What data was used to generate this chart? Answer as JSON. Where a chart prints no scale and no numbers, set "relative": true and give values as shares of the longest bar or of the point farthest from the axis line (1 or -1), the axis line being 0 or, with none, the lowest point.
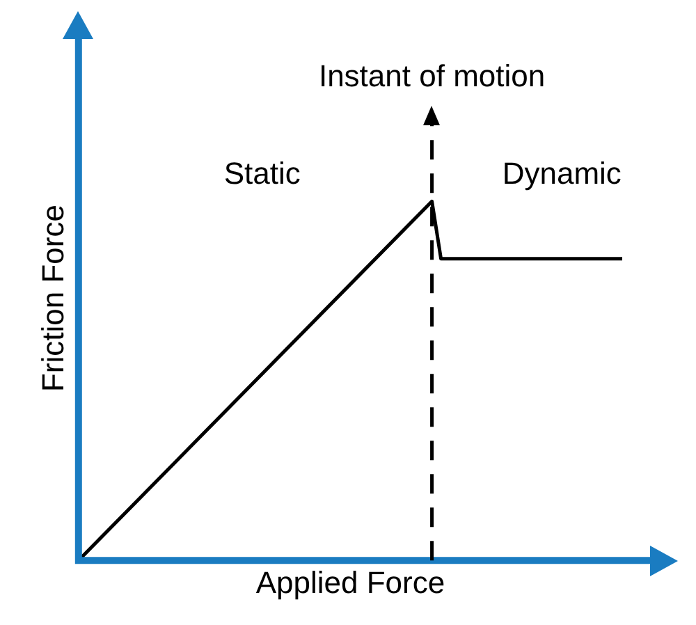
{
  "chart_data": {
    "type": "line",
    "relative": true,
    "xlabel": "Applied Force",
    "ylabel": "Friction Force",
    "categories": [
      null,
      null,
      null,
      null,
      null,
      null,
      null,
      null,
      null,
      null,
      null,
      null,
      null,
      null,
      null,
      null,
      null,
      null,
      null,
      null,
      null,
      null,
      null,
      null,
      null,
      null,
      null,
      null,
      null,
      null,
      null,
      null,
      null,
      null,
      null,
      null,
      null,
      null,
      null,
      null,
      null,
      null,
      null,
      null,
      null,
      null,
      null,
      null,
      null,
      null,
      null,
      null,
      null,
      null,
      null,
      null,
      null,
      null,
      null,
      null,
      null
    ],
    "series": [
      {
        "color": "#000000",
        "values": [
          0,
          null,
          null,
          null,
          null,
          null,
          null,
          null,
          null,
          null,
          null,
          null,
          null,
          null,
          null,
          null,
          null,
          null,
          null,
          null,
          null,
          null,
          null,
          null,
          null,
          null,
          null,
          null,
          null,
          null,
          null,
          null,
          null,
          null,
          null,
          null,
          null,
          null,
          null,
          1,
          0.84,
          null,
          null,
          null,
          null,
          null,
          null,
          null,
          null,
          null,
          null,
          null,
          null,
          null,
          null,
          null,
          null,
          null,
          null,
          null,
          0.84
        ]
      }
    ],
    "annotations": [
      "Instant of motion",
      "Static",
      "Dynamic"
    ],
    "legend": false,
    "grid": false,
    "marker": "none",
    "line_style": "solid"
  }
}
